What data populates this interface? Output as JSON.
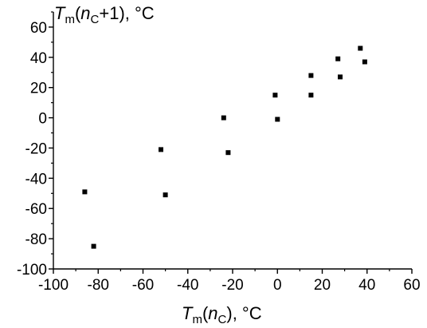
{
  "chart_data": {
    "type": "scatter",
    "xlabel": {
      "base": "T",
      "sub": "m",
      "open": "(",
      "arg": "n",
      "argsub": "C",
      "close": "), °C"
    },
    "ylabel": {
      "base": "T",
      "sub": "m",
      "open": "(",
      "arg": "n",
      "argsub": "C",
      "close": "+1), °C"
    },
    "xlim": [
      -100,
      60
    ],
    "ylim": [
      -100,
      70
    ],
    "x_ticks": [
      -100,
      -80,
      -60,
      -40,
      -20,
      0,
      20,
      40,
      60
    ],
    "x_tick_labels": [
      "-100",
      "-80",
      "-60",
      "-40",
      "-20",
      "0",
      "20",
      "40",
      "60"
    ],
    "y_ticks": [
      -100,
      -80,
      -60,
      -40,
      -20,
      0,
      20,
      40,
      60
    ],
    "y_tick_labels": [
      "-100",
      "-80",
      "-60",
      "-40",
      "-20",
      "0",
      "20",
      "40",
      "60"
    ],
    "grid": false,
    "marker": "square",
    "color": "#000000",
    "points": [
      {
        "x": -86,
        "y": -49
      },
      {
        "x": -82,
        "y": -85
      },
      {
        "x": -52,
        "y": -21
      },
      {
        "x": -50,
        "y": -51
      },
      {
        "x": -24,
        "y": 0
      },
      {
        "x": -22,
        "y": -23
      },
      {
        "x": -1,
        "y": 15
      },
      {
        "x": 0,
        "y": -1
      },
      {
        "x": 15,
        "y": 28
      },
      {
        "x": 15,
        "y": 15
      },
      {
        "x": 27,
        "y": 39
      },
      {
        "x": 28,
        "y": 27
      },
      {
        "x": 37,
        "y": 46
      },
      {
        "x": 39,
        "y": 37
      }
    ]
  }
}
